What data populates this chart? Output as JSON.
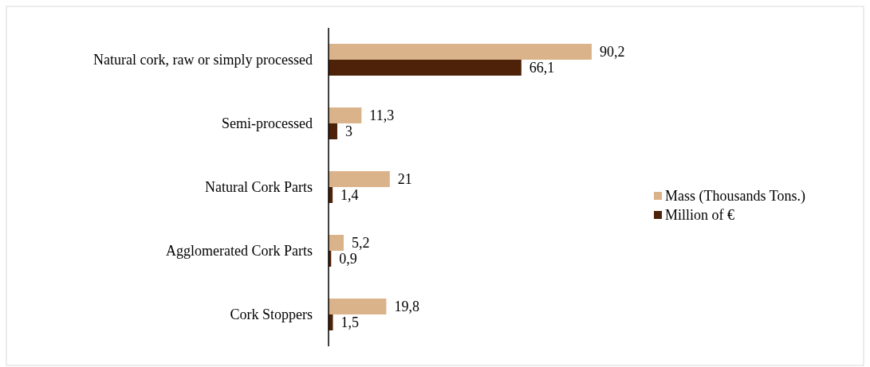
{
  "chart_data": {
    "type": "bar",
    "orientation": "horizontal",
    "categories": [
      "Natural cork, raw or simply processed",
      "Semi-processed",
      "Natural Cork Parts",
      "Agglomerated Cork Parts",
      "Cork Stoppers"
    ],
    "series": [
      {
        "name": "Mass (Thousands Tons.)",
        "color": "#dbb38b",
        "values": [
          90.2,
          11.3,
          21,
          5.2,
          19.8
        ],
        "value_labels": [
          "90,2",
          "11,3",
          "21",
          "5,2",
          "19,8"
        ]
      },
      {
        "name": "Million of €",
        "color": "#4d2208",
        "values": [
          66.1,
          3,
          1.4,
          0.9,
          1.5
        ],
        "value_labels": [
          "66,1",
          "3",
          "1,4",
          "0,9",
          "1,5"
        ]
      }
    ],
    "legend": "right"
  }
}
